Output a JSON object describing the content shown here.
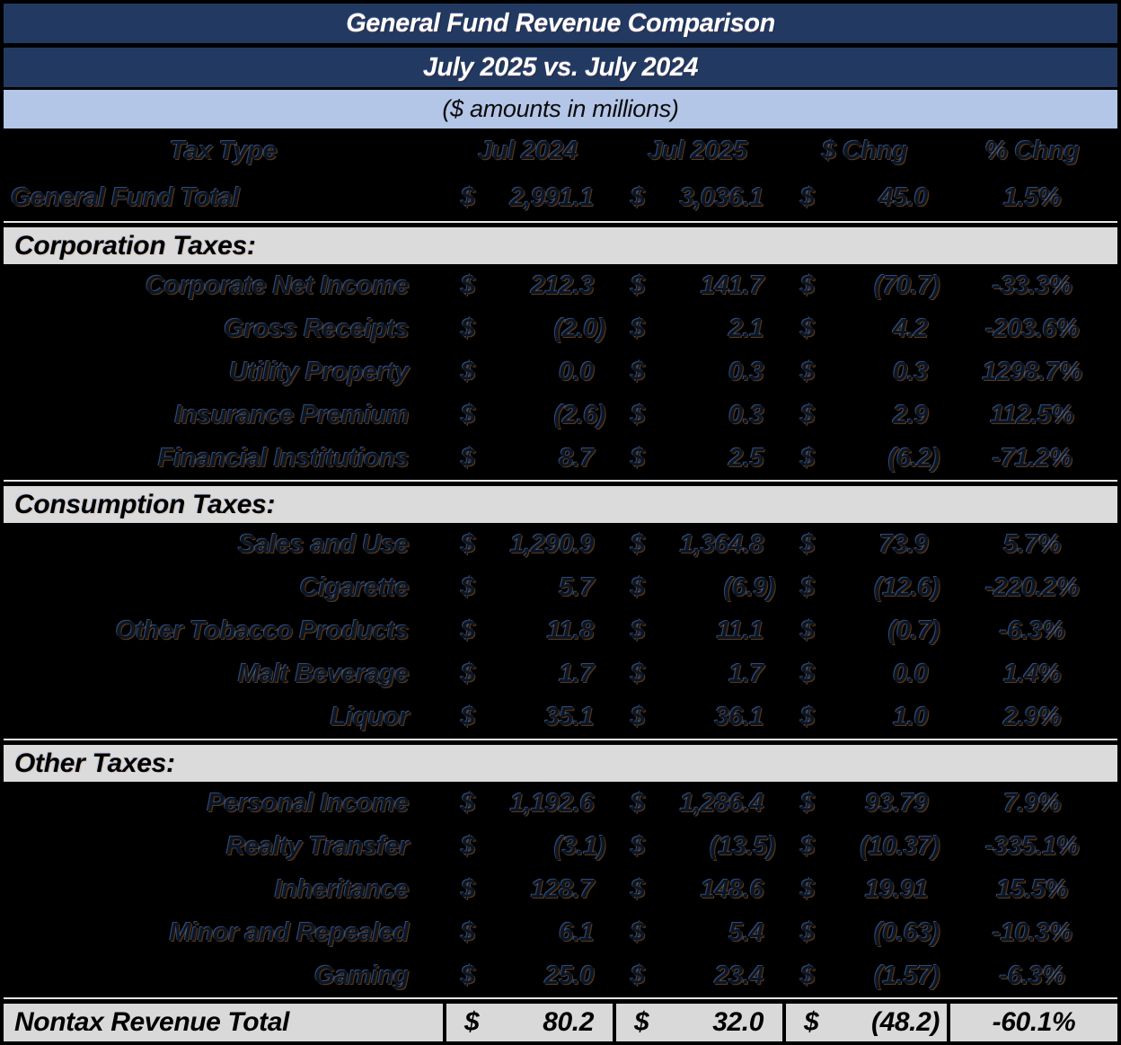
{
  "chart_data": {
    "type": "table",
    "title": "General Fund Revenue Comparison",
    "subtitle": "July 2025 vs. July 2024",
    "units_note": "($ amounts in millions)",
    "currency": "$",
    "columns": [
      "Tax Type",
      "Jul 2024",
      "Jul 2025",
      "$ Chng",
      "% Chng"
    ],
    "grand_total": {
      "label": "General Fund Total",
      "jul2024": "2,991.1",
      "jul2025": "3,036.1",
      "chg": "45.0",
      "pct": "1.5%"
    },
    "sections": [
      {
        "header": "Corporation Taxes:",
        "rows": [
          {
            "label": "Corporate Net Income",
            "jul2024": "212.3",
            "jul2025": "141.7",
            "chg": "(70.7)",
            "pct": "-33.3%"
          },
          {
            "label": "Gross Receipts",
            "jul2024": "(2.0)",
            "jul2025": "2.1",
            "chg": "4.2",
            "pct": "-203.6%"
          },
          {
            "label": "Utility Property",
            "jul2024": "0.0",
            "jul2025": "0.3",
            "chg": "0.3",
            "pct": "1298.7%"
          },
          {
            "label": "Insurance Premium",
            "jul2024": "(2.6)",
            "jul2025": "0.3",
            "chg": "2.9",
            "pct": "112.5%"
          },
          {
            "label": "Financial Institutions",
            "jul2024": "8.7",
            "jul2025": "2.5",
            "chg": "(6.2)",
            "pct": "-71.2%"
          }
        ]
      },
      {
        "header": "Consumption Taxes:",
        "rows": [
          {
            "label": "Sales and Use",
            "jul2024": "1,290.9",
            "jul2025": "1,364.8",
            "chg": "73.9",
            "pct": "5.7%"
          },
          {
            "label": "Cigarette",
            "jul2024": "5.7",
            "jul2025": "(6.9)",
            "chg": "(12.6)",
            "pct": "-220.2%"
          },
          {
            "label": "Other Tobacco Products",
            "jul2024": "11.8",
            "jul2025": "11.1",
            "chg": "(0.7)",
            "pct": "-6.3%"
          },
          {
            "label": "Malt Beverage",
            "jul2024": "1.7",
            "jul2025": "1.7",
            "chg": "0.0",
            "pct": "1.4%"
          },
          {
            "label": "Liquor",
            "jul2024": "35.1",
            "jul2025": "36.1",
            "chg": "1.0",
            "pct": "2.9%"
          }
        ]
      },
      {
        "header": "Other Taxes:",
        "rows": [
          {
            "label": "Personal Income",
            "jul2024": "1,192.6",
            "jul2025": "1,286.4",
            "chg": "93.79",
            "pct": "7.9%"
          },
          {
            "label": "Realty Transfer",
            "jul2024": "(3.1)",
            "jul2025": "(13.5)",
            "chg": "(10.37)",
            "pct": "-335.1%"
          },
          {
            "label": "Inheritance",
            "jul2024": "128.7",
            "jul2025": "148.6",
            "chg": "19.91",
            "pct": "15.5%"
          },
          {
            "label": "Minor and Repealed",
            "jul2024": "6.1",
            "jul2025": "5.4",
            "chg": "(0.63)",
            "pct": "-10.3%"
          },
          {
            "label": "Gaming",
            "jul2024": "25.0",
            "jul2025": "23.4",
            "chg": "(1.57)",
            "pct": "-6.3%"
          }
        ]
      }
    ],
    "footer_total": {
      "label": "Nontax Revenue Total",
      "jul2024": "80.2",
      "jul2025": "32.0",
      "chg": "(48.2)",
      "pct": "-60.1%"
    },
    "layout_hints": {
      "colors": {
        "title_bar_navy": "#223a62",
        "note_band_blue": "#b4c6e7",
        "section_band_gray": "#dbdbdb",
        "footer_gray": "#d9d9d9",
        "background": "#000000",
        "title_text": "#ffffff",
        "body_text_ghost": "#0d1522"
      }
    }
  }
}
